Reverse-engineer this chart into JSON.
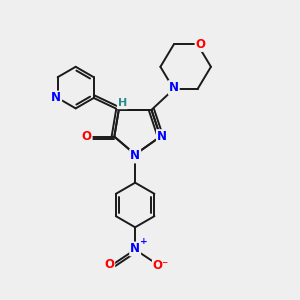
{
  "background_color": "#efefef",
  "bond_color": "#1a1a1a",
  "atom_colors": {
    "N": "#0000ff",
    "O": "#ff0000",
    "C": "#1a1a1a",
    "H": "#2e8b8b"
  },
  "figsize": [
    3.0,
    3.0
  ],
  "dpi": 100
}
